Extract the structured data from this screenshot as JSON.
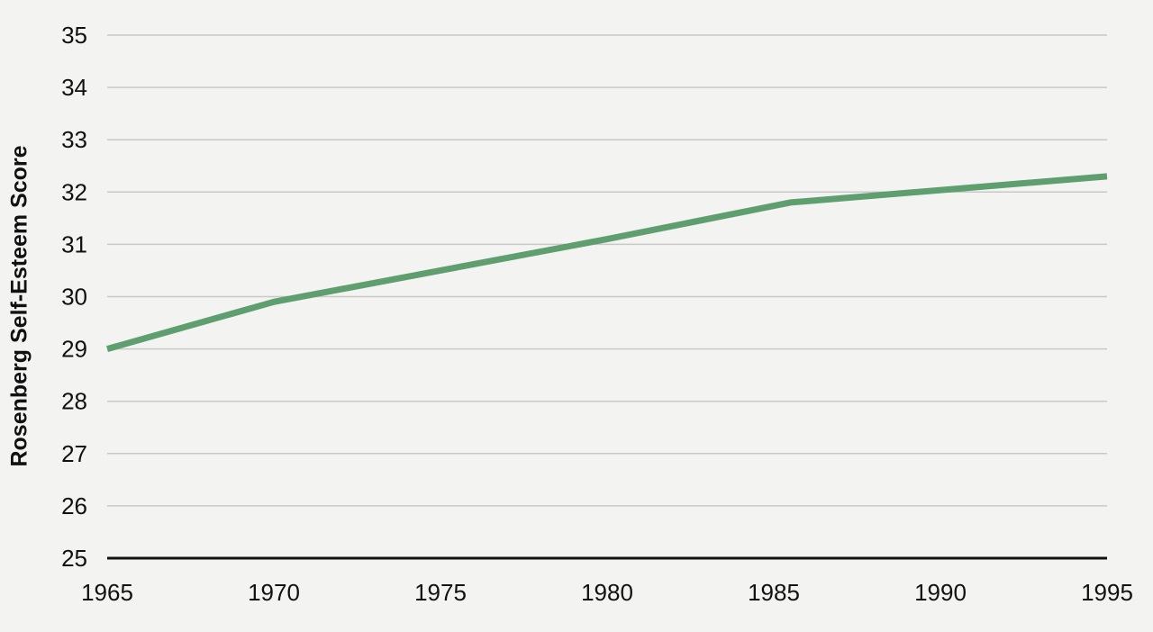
{
  "chart_data": {
    "type": "line",
    "title": "",
    "xlabel": "",
    "ylabel": "Rosenberg Self-Esteem Score",
    "xlim": [
      1965,
      1995
    ],
    "ylim": [
      25,
      35
    ],
    "x_ticks": [
      1965,
      1970,
      1975,
      1980,
      1985,
      1990,
      1995
    ],
    "y_ticks": [
      25,
      26,
      27,
      28,
      29,
      30,
      31,
      32,
      33,
      34,
      35
    ],
    "grid": true,
    "legend": "none",
    "series": [
      {
        "color": "#5f9e6e",
        "x": [
          1965,
          1970,
          1975,
          1980,
          1985.5,
          1995
        ],
        "y": [
          29.0,
          29.9,
          30.5,
          31.1,
          31.8,
          32.3
        ]
      }
    ]
  }
}
